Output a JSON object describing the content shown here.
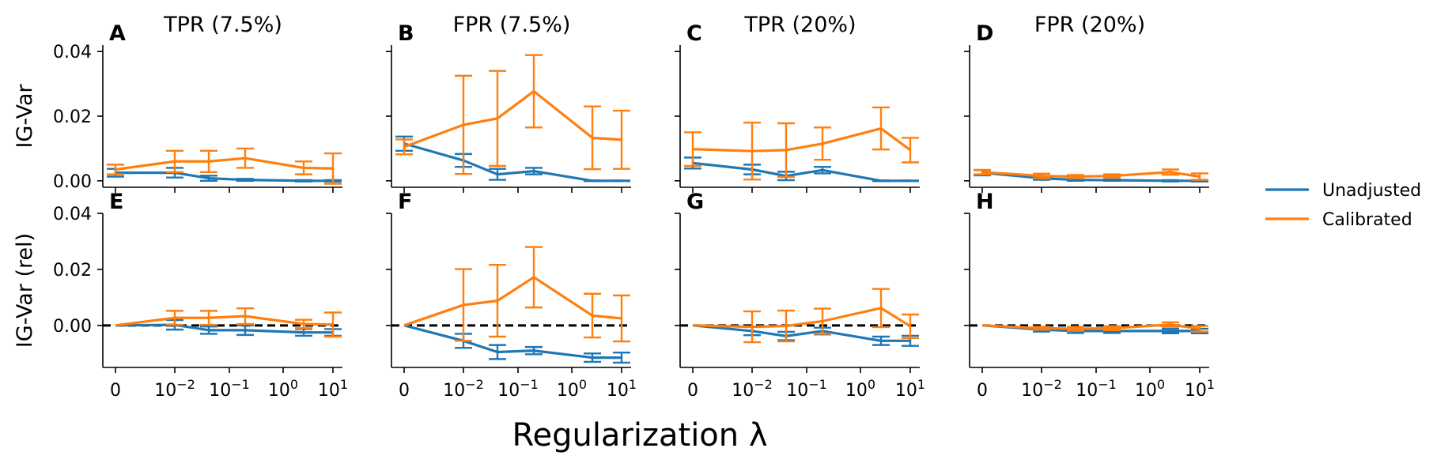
{
  "figure": {
    "xlabel": "Regularization λ",
    "row_ylabels": [
      "IG-Var",
      "IG-Var (rel)"
    ],
    "col_titles": [
      "TPR (7.5%)",
      "FPR (7.5%)",
      "TPR (20%)",
      "FPR (20%)"
    ],
    "x_tick_labels": [
      "0",
      "10",
      "10",
      "10",
      "10"
    ],
    "x_tick_exponents": [
      "",
      "−2",
      "−1",
      "0",
      "1"
    ],
    "y_tick_labels_top": [
      "0.04",
      "0.02",
      "0.00"
    ],
    "y_tick_labels_bottom": [
      "0.04",
      "0.02",
      "0.00"
    ],
    "legend": {
      "placement": "right",
      "entries": [
        {
          "label": "Unadjusted",
          "color": "#1f77b4"
        },
        {
          "label": "Calibrated",
          "color": "#ff7f0e"
        }
      ]
    }
  },
  "colors": {
    "unadjusted": "#1f77b4",
    "calibrated": "#ff7f0e",
    "reference": "#000000"
  },
  "chart_data": [
    {
      "panel": "A",
      "type": "line",
      "title": "TPR (7.5%)",
      "ylabel": "IG-Var",
      "ylim": [
        -0.002,
        0.042
      ],
      "zero_line": false,
      "x": [
        0,
        0.01,
        0.0562,
        0.316,
        1.78,
        10
      ],
      "series": [
        {
          "name": "Unadjusted",
          "values": [
            0.0025,
            0.0025,
            0.0008,
            0.0003,
            0.0,
            0.0
          ],
          "err": [
            0.0012,
            0.0015,
            0.0008,
            0.0003,
            0.0002,
            0.0002
          ]
        },
        {
          "name": "Calibrated",
          "values": [
            0.0035,
            0.006,
            0.006,
            0.007,
            0.004,
            0.0038
          ],
          "err": [
            0.0015,
            0.0033,
            0.0033,
            0.003,
            0.002,
            0.0047
          ]
        }
      ]
    },
    {
      "panel": "B",
      "type": "line",
      "title": "FPR (7.5%)",
      "ylim": [
        -0.002,
        0.042
      ],
      "zero_line": false,
      "x": [
        0,
        0.01,
        0.0562,
        0.316,
        1.78,
        10
      ],
      "series": [
        {
          "name": "Unadjusted",
          "values": [
            0.0115,
            0.0063,
            0.002,
            0.003,
            0.0,
            0.0
          ],
          "err": [
            0.0022,
            0.002,
            0.0017,
            0.001,
            0.0001,
            0.0001
          ]
        },
        {
          "name": "Calibrated",
          "values": [
            0.0105,
            0.0173,
            0.0193,
            0.0277,
            0.0133,
            0.0127
          ],
          "err": [
            0.0023,
            0.0152,
            0.0147,
            0.0112,
            0.0097,
            0.009
          ]
        }
      ]
    },
    {
      "panel": "C",
      "type": "line",
      "title": "TPR (20%)",
      "ylim": [
        -0.002,
        0.042
      ],
      "zero_line": false,
      "x": [
        0,
        0.01,
        0.0562,
        0.316,
        1.78,
        10
      ],
      "series": [
        {
          "name": "Unadjusted",
          "values": [
            0.0055,
            0.0035,
            0.0015,
            0.0033,
            0.0,
            0.0
          ],
          "err": [
            0.0017,
            0.0015,
            0.0013,
            0.001,
            0.0001,
            0.0001
          ]
        },
        {
          "name": "Calibrated",
          "values": [
            0.0098,
            0.0092,
            0.0095,
            0.0115,
            0.0162,
            0.0095
          ],
          "err": [
            0.0052,
            0.0088,
            0.0083,
            0.005,
            0.0065,
            0.0038
          ]
        }
      ]
    },
    {
      "panel": "D",
      "type": "line",
      "title": "FPR (20%)",
      "ylim": [
        -0.002,
        0.042
      ],
      "zero_line": false,
      "x": [
        0,
        0.01,
        0.0562,
        0.316,
        1.78,
        10
      ],
      "series": [
        {
          "name": "Unadjusted",
          "values": [
            0.0025,
            0.0008,
            0.0003,
            0.0002,
            0.0,
            0.0
          ],
          "err": [
            0.0008,
            0.0005,
            0.0003,
            0.0002,
            0.0002,
            0.0002
          ]
        },
        {
          "name": "Calibrated",
          "values": [
            0.0027,
            0.0015,
            0.0013,
            0.0015,
            0.0027,
            0.0013
          ],
          "err": [
            0.0007,
            0.0007,
            0.0005,
            0.0005,
            0.0008,
            0.001
          ]
        }
      ]
    },
    {
      "panel": "E",
      "type": "line",
      "ylabel": "IG-Var (rel)",
      "ylim": [
        -0.015,
        0.04
      ],
      "zero_line": true,
      "x": [
        0,
        0.01,
        0.0562,
        0.316,
        1.78,
        10
      ],
      "series": [
        {
          "name": "Unadjusted",
          "values": [
            0.0,
            0.0002,
            -0.0017,
            -0.0017,
            -0.0025,
            -0.0025
          ],
          "err": [
            0.0,
            0.0017,
            0.0013,
            0.0017,
            0.0012,
            0.0012
          ]
        },
        {
          "name": "Calibrated",
          "values": [
            0.0,
            0.0027,
            0.0027,
            0.0033,
            0.0005,
            0.0003
          ],
          "err": [
            0.0,
            0.0025,
            0.0025,
            0.0028,
            0.0015,
            0.0043
          ]
        }
      ]
    },
    {
      "panel": "F",
      "type": "line",
      "ylim": [
        -0.015,
        0.04
      ],
      "zero_line": true,
      "x": [
        0,
        0.01,
        0.0562,
        0.316,
        1.78,
        10
      ],
      "series": [
        {
          "name": "Unadjusted",
          "values": [
            0.0,
            -0.0055,
            -0.0095,
            -0.009,
            -0.0115,
            -0.0115
          ],
          "err": [
            0.0,
            0.0025,
            0.0025,
            0.0013,
            0.0015,
            0.0018
          ]
        },
        {
          "name": "Calibrated",
          "values": [
            0.0,
            0.0073,
            0.0088,
            0.0172,
            0.0035,
            0.0025
          ],
          "err": [
            0.0,
            0.0128,
            0.0128,
            0.0108,
            0.0078,
            0.0082
          ]
        }
      ]
    },
    {
      "panel": "G",
      "type": "line",
      "ylim": [
        -0.015,
        0.04
      ],
      "zero_line": true,
      "x": [
        0,
        0.01,
        0.0562,
        0.316,
        1.78,
        10
      ],
      "series": [
        {
          "name": "Unadjusted",
          "values": [
            0.0,
            -0.002,
            -0.0038,
            -0.002,
            -0.0055,
            -0.0055
          ],
          "err": [
            0.0,
            0.0015,
            0.0015,
            0.0012,
            0.0015,
            0.0018
          ]
        },
        {
          "name": "Calibrated",
          "values": [
            0.0,
            -0.0005,
            -0.0002,
            0.0015,
            0.0062,
            -0.0003
          ],
          "err": [
            0.0,
            0.0055,
            0.0055,
            0.0045,
            0.0068,
            0.0042
          ]
        }
      ]
    },
    {
      "panel": "H",
      "type": "line",
      "ylim": [
        -0.015,
        0.04
      ],
      "zero_line": true,
      "x": [
        0,
        0.01,
        0.0562,
        0.316,
        1.78,
        10
      ],
      "series": [
        {
          "name": "Unadjusted",
          "values": [
            0.0,
            -0.0015,
            -0.002,
            -0.002,
            -0.002,
            -0.002
          ],
          "err": [
            0.0,
            0.0007,
            0.0007,
            0.0007,
            0.0008,
            0.0008
          ]
        },
        {
          "name": "Calibrated",
          "values": [
            0.0,
            -0.001,
            -0.0012,
            -0.001,
            0.0003,
            -0.0012
          ],
          "err": [
            0.0,
            0.0005,
            0.0007,
            0.0007,
            0.0008,
            0.001
          ]
        }
      ]
    }
  ]
}
